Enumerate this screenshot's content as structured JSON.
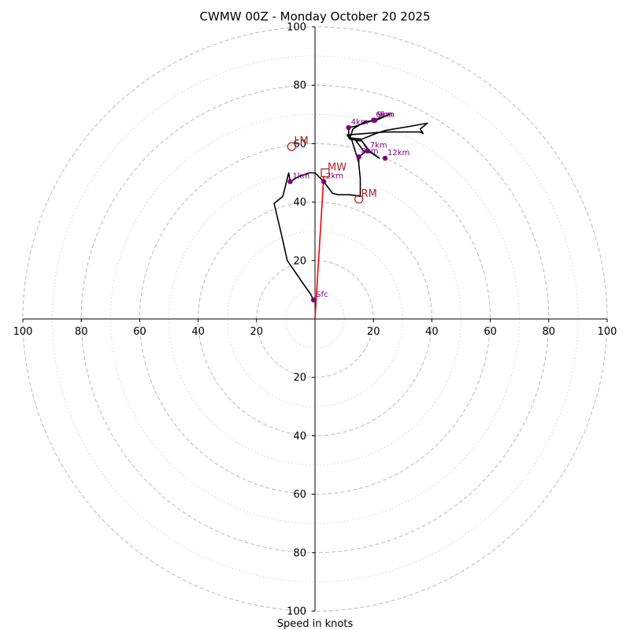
{
  "chart_data": {
    "type": "hodograph",
    "title": "CWMW 00Z - Monday October 20 2025",
    "xlabel": "Speed in knots",
    "ylabel": "",
    "units": "knots",
    "xlim": [
      -100,
      100
    ],
    "ylim": [
      -100,
      100
    ],
    "rings_dashed": [
      20,
      40,
      60,
      80,
      100
    ],
    "rings_dotted": [
      10,
      30,
      50,
      70,
      90
    ],
    "ticks": [
      {
        "value": -100,
        "label": "100"
      },
      {
        "value": -80,
        "label": "80"
      },
      {
        "value": -60,
        "label": "60"
      },
      {
        "value": -40,
        "label": "40"
      },
      {
        "value": -20,
        "label": "20"
      },
      {
        "value": 20,
        "label": "20"
      },
      {
        "value": 40,
        "label": "40"
      },
      {
        "value": 60,
        "label": "60"
      },
      {
        "value": 80,
        "label": "80"
      },
      {
        "value": 100,
        "label": "100"
      }
    ],
    "wind_profile": [
      [
        -0.5,
        6.5
      ],
      [
        -1.5,
        8.5
      ],
      [
        -4,
        12
      ],
      [
        -9.5,
        20
      ],
      [
        -11.5,
        29
      ],
      [
        -14,
        39.5
      ],
      [
        -11,
        42
      ],
      [
        -9,
        50
      ],
      [
        -8.5,
        47
      ],
      [
        -6,
        48.5
      ],
      [
        -2,
        50
      ],
      [
        0,
        50
      ],
      [
        3,
        47
      ],
      [
        6,
        43
      ],
      [
        8,
        42.5
      ],
      [
        12,
        42.5
      ],
      [
        15.5,
        42
      ],
      [
        15.5,
        45
      ],
      [
        15.5,
        48
      ],
      [
        15,
        53
      ],
      [
        15,
        55.5
      ],
      [
        17,
        57
      ],
      [
        14,
        61
      ],
      [
        16,
        61
      ],
      [
        18,
        58
      ],
      [
        22,
        55
      ],
      [
        19,
        57
      ],
      [
        16,
        61
      ],
      [
        12,
        61.5
      ],
      [
        11,
        63
      ],
      [
        24,
        64
      ],
      [
        36,
        64
      ],
      [
        37,
        63.5
      ],
      [
        36,
        65
      ],
      [
        38.5,
        67
      ],
      [
        33,
        66
      ],
      [
        24,
        64.5
      ],
      [
        21,
        63.5
      ],
      [
        16,
        61.5
      ],
      [
        12,
        62
      ],
      [
        13,
        65
      ],
      [
        17,
        67.5
      ],
      [
        21,
        68
      ],
      [
        25.5,
        70
      ],
      [
        20,
        68
      ],
      [
        14,
        66
      ],
      [
        11.5,
        65.5
      ],
      [
        11.5,
        63
      ],
      [
        12.5,
        61.5
      ],
      [
        15,
        53.5
      ]
    ],
    "height_markers": [
      {
        "label": "Sfc",
        "u": -0.5,
        "v": 6.5
      },
      {
        "label": "1km",
        "u": -8.5,
        "v": 47
      },
      {
        "label": "2km",
        "u": 3,
        "v": 47
      },
      {
        "label": "4km",
        "u": 11.5,
        "v": 65.5
      },
      {
        "label": "6km",
        "u": 20,
        "v": 68
      },
      {
        "label": "7km",
        "u": 18,
        "v": 57.5
      },
      {
        "label": "8km",
        "u": 15,
        "v": 55.5
      },
      {
        "label": "9km",
        "u": 20.5,
        "v": 68
      },
      {
        "label": "12km",
        "u": 24,
        "v": 55
      }
    ],
    "storm_motion_vector": {
      "from": [
        0,
        0
      ],
      "to": [
        3,
        49
      ]
    },
    "storm_motions": [
      {
        "label": "LM",
        "u": -8,
        "v": 59,
        "marker": "circle"
      },
      {
        "label": "MW",
        "u": 3.5,
        "v": 50,
        "marker": "square"
      },
      {
        "label": "RM",
        "u": 15,
        "v": 41,
        "marker": "circle"
      }
    ],
    "colors": {
      "profile": "#000000",
      "markers": "#800080",
      "storm_motion": "#b22222",
      "vector": "#ff0000",
      "rings": "#bbbbbb"
    }
  }
}
